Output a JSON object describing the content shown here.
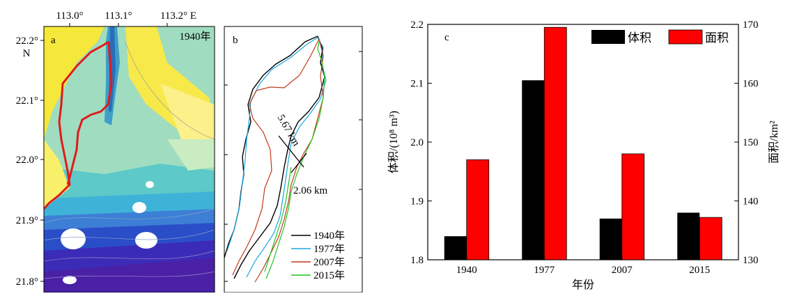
{
  "panel_a": {
    "label": "a",
    "year_label": "1940年",
    "top_ticks": [
      "113.0°",
      "113.1°",
      "113.2° E"
    ],
    "left_ticks": [
      "22.2°",
      "22.1°",
      "22.0°",
      "21.9°",
      "21.8°"
    ],
    "north_label": "N"
  },
  "panel_b": {
    "label": "b",
    "length_label": "5.67 km",
    "width_label": "2.06 km",
    "legend": [
      {
        "label": "1940年",
        "color": "#000000"
      },
      {
        "label": "1977年",
        "color": "#1aa7e0"
      },
      {
        "label": "2007年",
        "color": "#c0391b"
      },
      {
        "label": "2015年",
        "color": "#22c51e"
      }
    ]
  },
  "chart_data": {
    "type": "bar",
    "label": "c",
    "categories": [
      "1940",
      "1977",
      "2007",
      "2015"
    ],
    "xlabel": "年份",
    "ylabel_left": "体积/(10⁸ m³)",
    "ylabel_right": "面积/km²",
    "ylim_left": [
      1.8,
      2.2
    ],
    "ylim_right": [
      130,
      170
    ],
    "yticks_left": [
      "1.8",
      "1.9",
      "2.0",
      "2.1",
      "2.2"
    ],
    "yticks_right": [
      "130",
      "140",
      "150",
      "160",
      "170"
    ],
    "legend_position": "top-right",
    "series": [
      {
        "name": "体积",
        "axis": "left",
        "color": "#000000",
        "values": [
          1.84,
          2.105,
          1.87,
          1.88
        ]
      },
      {
        "name": "面积",
        "axis": "right",
        "color": "#ff0000",
        "values": [
          147,
          169.5,
          148,
          137.2
        ]
      }
    ]
  }
}
